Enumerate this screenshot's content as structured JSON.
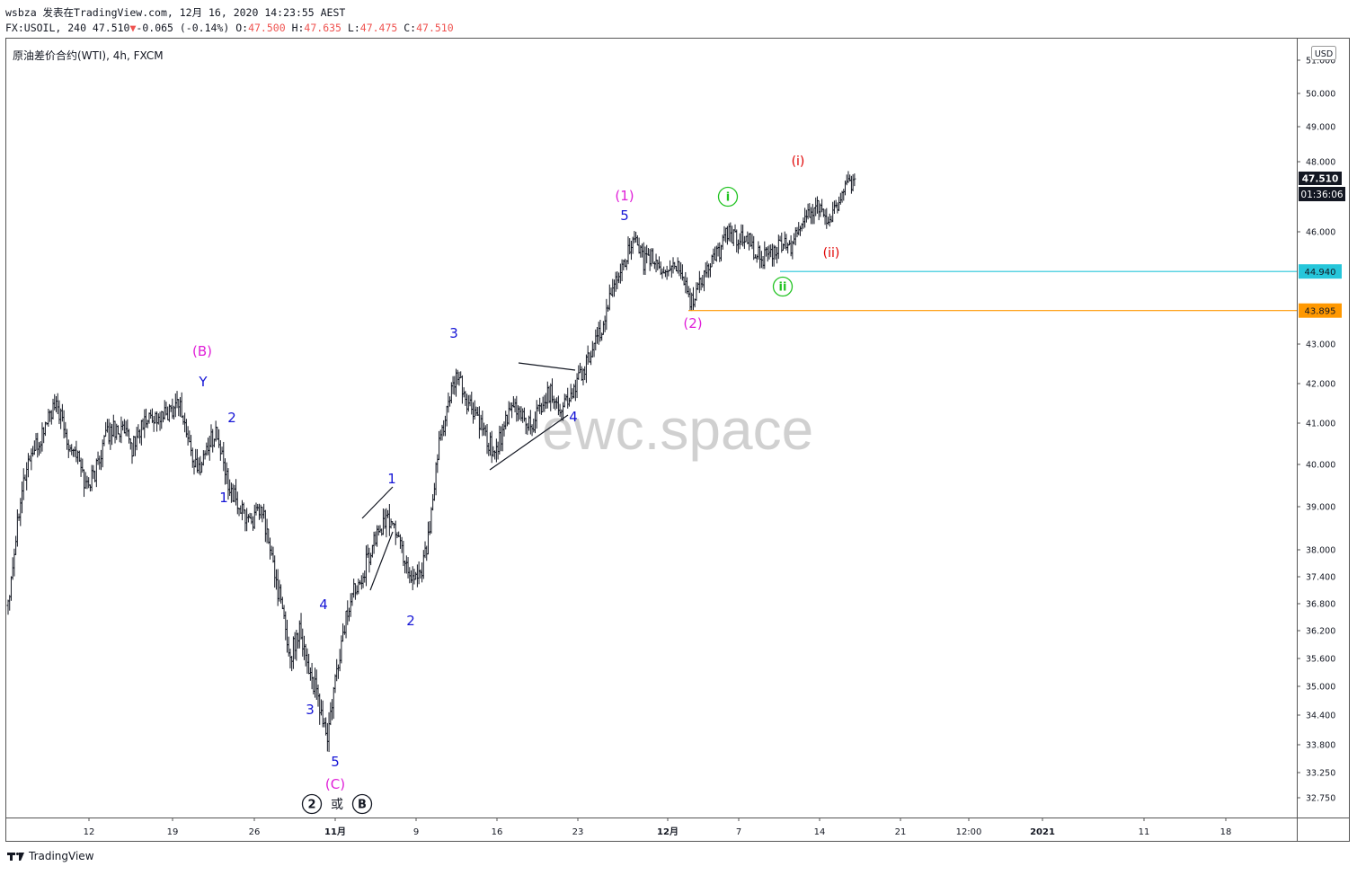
{
  "header": {
    "line1": "wsbza 发表在TradingView.com, 12月 16, 2020 14:23:55 AEST",
    "symbol_prefix": "FX:USOIL, 240 47.510",
    "change_arrow": "▼",
    "change": "-0.065 (-0.14%)",
    "o_label": "O:",
    "o_value": "47.500",
    "h_label": "H:",
    "h_value": "47.635",
    "l_label": "L:",
    "l_value": "47.475",
    "c_label": "C:",
    "c_value": "47.510"
  },
  "legend": "原油差价合约(WTI), 4h, FXCM",
  "watermark": "ewc.space",
  "currency": "USD",
  "price_badge": "47.510",
  "countdown_badge": "01:36:06",
  "level_badges": [
    {
      "value": "44.940",
      "color": "#26c6da"
    },
    {
      "value": "43.895",
      "color": "#ff9800"
    }
  ],
  "footer": {
    "brand": "TradingView"
  },
  "colors": {
    "blue": "#1515d6",
    "magenta": "#e020d8",
    "green": "#22c322",
    "red": "#e00000",
    "ink": "#131722"
  },
  "chart_data": {
    "type": "candlestick",
    "symbol": "FX:USOIL",
    "interval": "4h",
    "y_ticks": [
      "51.000",
      "50.000",
      "49.000",
      "48.000",
      "46.000",
      "43.000",
      "42.000",
      "41.000",
      "40.000",
      "39.000",
      "38.000",
      "37.400",
      "36.800",
      "36.200",
      "35.600",
      "35.000",
      "34.400",
      "33.800",
      "33.250",
      "32.750"
    ],
    "x_ticks": [
      "12",
      "19",
      "26",
      "11月",
      "9",
      "16",
      "23",
      "12月",
      "7",
      "14",
      "21",
      "12:00",
      "2021",
      "11",
      "18"
    ],
    "x_tick_bold": [
      "11月",
      "12月",
      "2021"
    ],
    "ylim": [
      32.6,
      51.3
    ],
    "anchors": [
      [
        0,
        36.9
      ],
      [
        4,
        38.0
      ],
      [
        8,
        39.3
      ],
      [
        14,
        40.2
      ],
      [
        20,
        40.5
      ],
      [
        26,
        41.2
      ],
      [
        32,
        41.4
      ],
      [
        38,
        40.6
      ],
      [
        44,
        40.3
      ],
      [
        50,
        39.5
      ],
      [
        56,
        39.8
      ],
      [
        62,
        40.6
      ],
      [
        68,
        40.9
      ],
      [
        74,
        40.8
      ],
      [
        80,
        40.4
      ],
      [
        86,
        40.9
      ],
      [
        92,
        41.2
      ],
      [
        98,
        41.1
      ],
      [
        104,
        41.3
      ],
      [
        110,
        41.6
      ],
      [
        116,
        40.6
      ],
      [
        122,
        39.8
      ],
      [
        128,
        40.4
      ],
      [
        134,
        40.8
      ],
      [
        140,
        39.8
      ],
      [
        146,
        39.2
      ],
      [
        152,
        38.8
      ],
      [
        158,
        38.7
      ],
      [
        164,
        38.9
      ],
      [
        170,
        37.8
      ],
      [
        176,
        36.8
      ],
      [
        182,
        35.6
      ],
      [
        188,
        36.3
      ],
      [
        194,
        35.4
      ],
      [
        200,
        34.7
      ],
      [
        206,
        33.9
      ],
      [
        212,
        35.3
      ],
      [
        218,
        36.5
      ],
      [
        224,
        37.2
      ],
      [
        230,
        37.6
      ],
      [
        236,
        38.2
      ],
      [
        242,
        38.6
      ],
      [
        248,
        38.7
      ],
      [
        254,
        38.0
      ],
      [
        260,
        37.4
      ],
      [
        266,
        37.5
      ],
      [
        272,
        38.4
      ],
      [
        278,
        40.5
      ],
      [
        284,
        41.5
      ],
      [
        290,
        42.2
      ],
      [
        296,
        41.5
      ],
      [
        302,
        41.2
      ],
      [
        308,
        40.6
      ],
      [
        314,
        40.3
      ],
      [
        320,
        40.9
      ],
      [
        326,
        41.4
      ],
      [
        332,
        41.2
      ],
      [
        338,
        40.9
      ],
      [
        344,
        41.5
      ],
      [
        350,
        41.8
      ],
      [
        356,
        41.4
      ],
      [
        362,
        41.6
      ],
      [
        368,
        42.1
      ],
      [
        374,
        42.6
      ],
      [
        380,
        43.1
      ],
      [
        386,
        43.8
      ],
      [
        392,
        44.8
      ],
      [
        398,
        45.3
      ],
      [
        404,
        45.7
      ],
      [
        410,
        45.2
      ],
      [
        416,
        45.3
      ],
      [
        422,
        44.9
      ],
      [
        428,
        45.1
      ],
      [
        434,
        45.0
      ],
      [
        440,
        44.1
      ],
      [
        446,
        44.6
      ],
      [
        452,
        45.1
      ],
      [
        458,
        45.4
      ],
      [
        464,
        46.0
      ],
      [
        470,
        45.8
      ],
      [
        476,
        45.9
      ],
      [
        482,
        45.4
      ],
      [
        488,
        45.3
      ],
      [
        494,
        45.4
      ],
      [
        500,
        45.7
      ],
      [
        506,
        45.6
      ],
      [
        512,
        46.3
      ],
      [
        518,
        46.6
      ],
      [
        524,
        46.8
      ],
      [
        530,
        46.3
      ],
      [
        536,
        46.9
      ],
      [
        542,
        47.3
      ],
      [
        546,
        47.3
      ]
    ],
    "annotations": [
      {
        "label": "(B)",
        "color": "magenta"
      },
      {
        "label": "Y",
        "color": "blue"
      },
      {
        "label": "2",
        "color": "blue"
      },
      {
        "label": "1",
        "color": "blue"
      },
      {
        "label": "4",
        "color": "blue"
      },
      {
        "label": "3",
        "color": "blue"
      },
      {
        "label": "5",
        "color": "blue"
      },
      {
        "label": "(C)",
        "color": "magenta"
      },
      {
        "label": "1",
        "color": "blue"
      },
      {
        "label": "2",
        "color": "blue"
      },
      {
        "label": "3",
        "color": "blue"
      },
      {
        "label": "4",
        "color": "blue"
      },
      {
        "label": "(1)",
        "color": "magenta"
      },
      {
        "label": "5",
        "color": "blue"
      },
      {
        "label": "(2)",
        "color": "magenta"
      },
      {
        "label": "(i)",
        "color": "red"
      },
      {
        "label": "(ii)",
        "color": "red"
      }
    ],
    "circled_labels": [
      {
        "label": "i",
        "color": "green"
      },
      {
        "label": "ii",
        "color": "green"
      },
      {
        "label": "2",
        "color": "ink"
      },
      {
        "label": "B",
        "color": "ink"
      }
    ],
    "or_text": "或",
    "horizontal_levels": [
      {
        "value": 44.94,
        "color": "#26c6da"
      },
      {
        "value": 43.895,
        "color": "#ff9800"
      }
    ]
  }
}
